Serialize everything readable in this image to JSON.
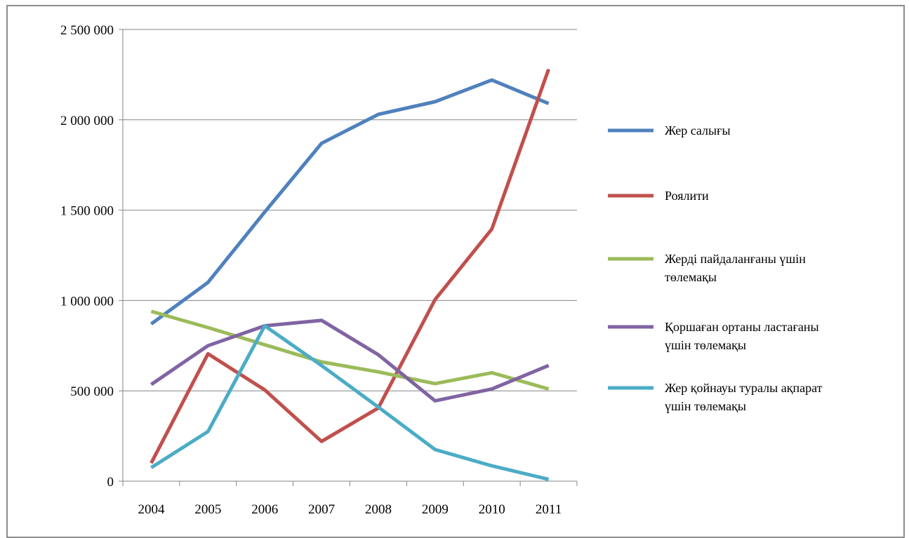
{
  "chart_data": {
    "type": "line",
    "x": [
      "2004",
      "2005",
      "2006",
      "2007",
      "2008",
      "2009",
      "2010",
      "2011"
    ],
    "ylim": [
      0,
      2500000
    ],
    "yticks": [
      0,
      500000,
      1000000,
      1500000,
      2000000,
      2500000
    ],
    "ytick_labels": [
      "0",
      "500 000",
      "1 000 000",
      "1 500 000",
      "2 000 000",
      "2 500 000"
    ],
    "grid": true,
    "legend_position": "right",
    "series": [
      {
        "name": "Жер салығы",
        "legend_lines": [
          "Жер салығы"
        ],
        "color": "#4f81bd",
        "values": [
          870000,
          1100000,
          1490000,
          1870000,
          2030000,
          2100000,
          2220000,
          2090000
        ]
      },
      {
        "name": "Роялити",
        "legend_lines": [
          "Роялити"
        ],
        "color": "#c0504d",
        "values": [
          100000,
          705000,
          505000,
          220000,
          405000,
          1005000,
          1395000,
          2280000
        ]
      },
      {
        "name": "Жерді пайдаланғаны үшін төлемақы",
        "legend_lines": [
          "Жерді пайдаланғаны үшін",
          "төлемақы"
        ],
        "color": "#9bbb59",
        "values": [
          940000,
          850000,
          755000,
          660000,
          605000,
          540000,
          600000,
          510000
        ]
      },
      {
        "name": "Қоршаған ортаны ластағаны үшін төлемақы",
        "legend_lines": [
          "Қоршаған ортаны ластағаны",
          "үшін төлемақы"
        ],
        "color": "#8064a2",
        "values": [
          535000,
          750000,
          860000,
          890000,
          700000,
          445000,
          510000,
          640000
        ]
      },
      {
        "name": "Жер қойнауы туралы ақпарат үшін төлемақы",
        "legend_lines": [
          "Жер қойнауы туралы ақпарат",
          "үшін төлемақы"
        ],
        "color": "#4bacc6",
        "values": [
          75000,
          275000,
          860000,
          640000,
          410000,
          175000,
          85000,
          10000
        ]
      }
    ]
  }
}
